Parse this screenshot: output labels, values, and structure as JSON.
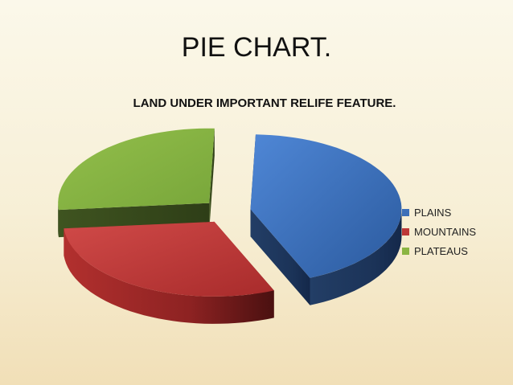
{
  "slide_title": "PIE CHART.",
  "chart_data": {
    "type": "pie",
    "title": "LAND UNDER IMPORTANT RELIFE FEATURE.",
    "categories": [
      "PLAINS",
      "MOUNTAINS",
      "PLATEAUS"
    ],
    "values": [
      43,
      30,
      27
    ],
    "legend_position": "right",
    "exploded": true,
    "style": "3d"
  },
  "colors": {
    "PLAINS": "#3d6fb8",
    "MOUNTAINS": "#bd3838",
    "PLATEAUS": "#8bb543"
  }
}
